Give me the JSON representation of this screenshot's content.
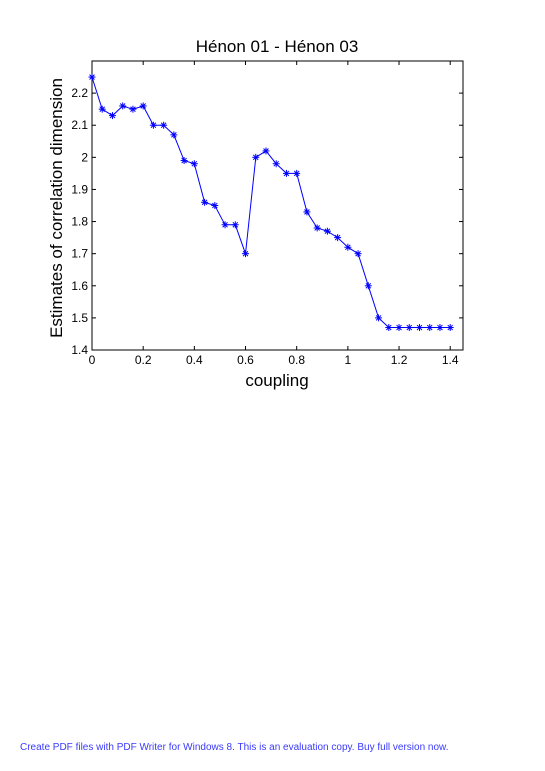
{
  "chart_data": {
    "type": "line",
    "title": "Hénon 01 - Hénon 03",
    "xlabel": "coupling",
    "ylabel": "Estimates of correlation dimension",
    "xlim": [
      0,
      1.45
    ],
    "ylim": [
      1.4,
      2.3
    ],
    "xticks": [
      0,
      0.2,
      0.4,
      0.6,
      0.8,
      1,
      1.2,
      1.4
    ],
    "xtick_labels": [
      "0",
      "0.2",
      "0.4",
      "0.6",
      "0.8",
      "1",
      "1.2",
      "1.4"
    ],
    "yticks": [
      1.4,
      1.5,
      1.6,
      1.7,
      1.8,
      1.9,
      2.0,
      2.1,
      2.2
    ],
    "ytick_labels": [
      "1.4",
      "1.5",
      "1.6",
      "1.7",
      "1.8",
      "1.9",
      "2",
      "2.1",
      "2.2"
    ],
    "grid": false,
    "marker": "asterisk",
    "line_color": "#0000ff",
    "series": [
      {
        "x": [
          0,
          0.04,
          0.08,
          0.12,
          0.16,
          0.2,
          0.24,
          0.28,
          0.32,
          0.36,
          0.4,
          0.44,
          0.48,
          0.52,
          0.56,
          0.6,
          0.64,
          0.68,
          0.72,
          0.76,
          0.8,
          0.84,
          0.88,
          0.92,
          0.96,
          1.0,
          1.04,
          1.08,
          1.12,
          1.16,
          1.2,
          1.24,
          1.28,
          1.32,
          1.36,
          1.4
        ],
        "y": [
          2.25,
          2.15,
          2.13,
          2.16,
          2.15,
          2.16,
          2.1,
          2.1,
          2.07,
          1.99,
          1.98,
          1.86,
          1.85,
          1.79,
          1.79,
          1.7,
          2.0,
          2.02,
          1.98,
          1.95,
          1.95,
          1.83,
          1.78,
          1.77,
          1.75,
          1.72,
          1.7,
          1.6,
          1.5,
          1.47,
          1.47,
          1.47,
          1.47,
          1.47,
          1.47,
          1.47
        ]
      }
    ]
  },
  "footer": {
    "text": "Create PDF files with PDF Writer for Windows 8. This is an evaluation copy. Buy full version now."
  }
}
